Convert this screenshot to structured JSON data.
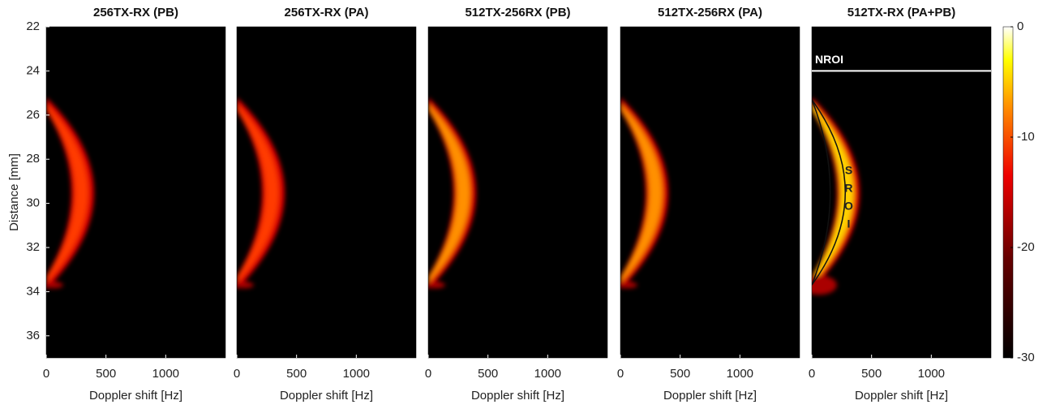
{
  "chart_data": [
    {
      "type": "heatmap",
      "title": "256TX-RX (PB)",
      "xlabel": "Doppler shift [Hz]",
      "ylabel": "Distance [mm]",
      "xlim": [
        0,
        1500
      ],
      "xticks": [
        0,
        500,
        1000
      ],
      "ylim": [
        37,
        22
      ],
      "yticks": [
        22,
        24,
        26,
        28,
        30,
        32,
        34,
        36
      ]
    },
    {
      "type": "heatmap",
      "title": "256TX-RX (PA)",
      "xlabel": "Doppler shift [Hz]",
      "xlim": [
        0,
        1500
      ],
      "xticks": [
        0,
        500,
        1000
      ],
      "ylim": [
        37,
        22
      ]
    },
    {
      "type": "heatmap",
      "title": "512TX-256RX (PB)",
      "xlabel": "Doppler shift [Hz]",
      "xlim": [
        0,
        1500
      ],
      "xticks": [
        0,
        500,
        1000
      ],
      "ylim": [
        37,
        22
      ]
    },
    {
      "type": "heatmap",
      "title": "512TX-256RX (PA)",
      "xlabel": "Doppler shift [Hz]",
      "xlim": [
        0,
        1500
      ],
      "xticks": [
        0,
        500,
        1000
      ],
      "ylim": [
        37,
        22
      ]
    },
    {
      "type": "heatmap",
      "title": "512TX-RX (PA+PB)",
      "xlabel": "Doppler shift [Hz]",
      "xlim": [
        0,
        1500
      ],
      "xticks": [
        0,
        500,
        1000
      ],
      "ylim": [
        37,
        22
      ],
      "annotations": [
        {
          "text": "NROI",
          "y": 24
        },
        {
          "text": "SROI"
        }
      ],
      "colorbar": {
        "lim": [
          -30,
          0
        ],
        "ticks": [
          0,
          -10,
          -20,
          -30
        ]
      }
    }
  ]
}
